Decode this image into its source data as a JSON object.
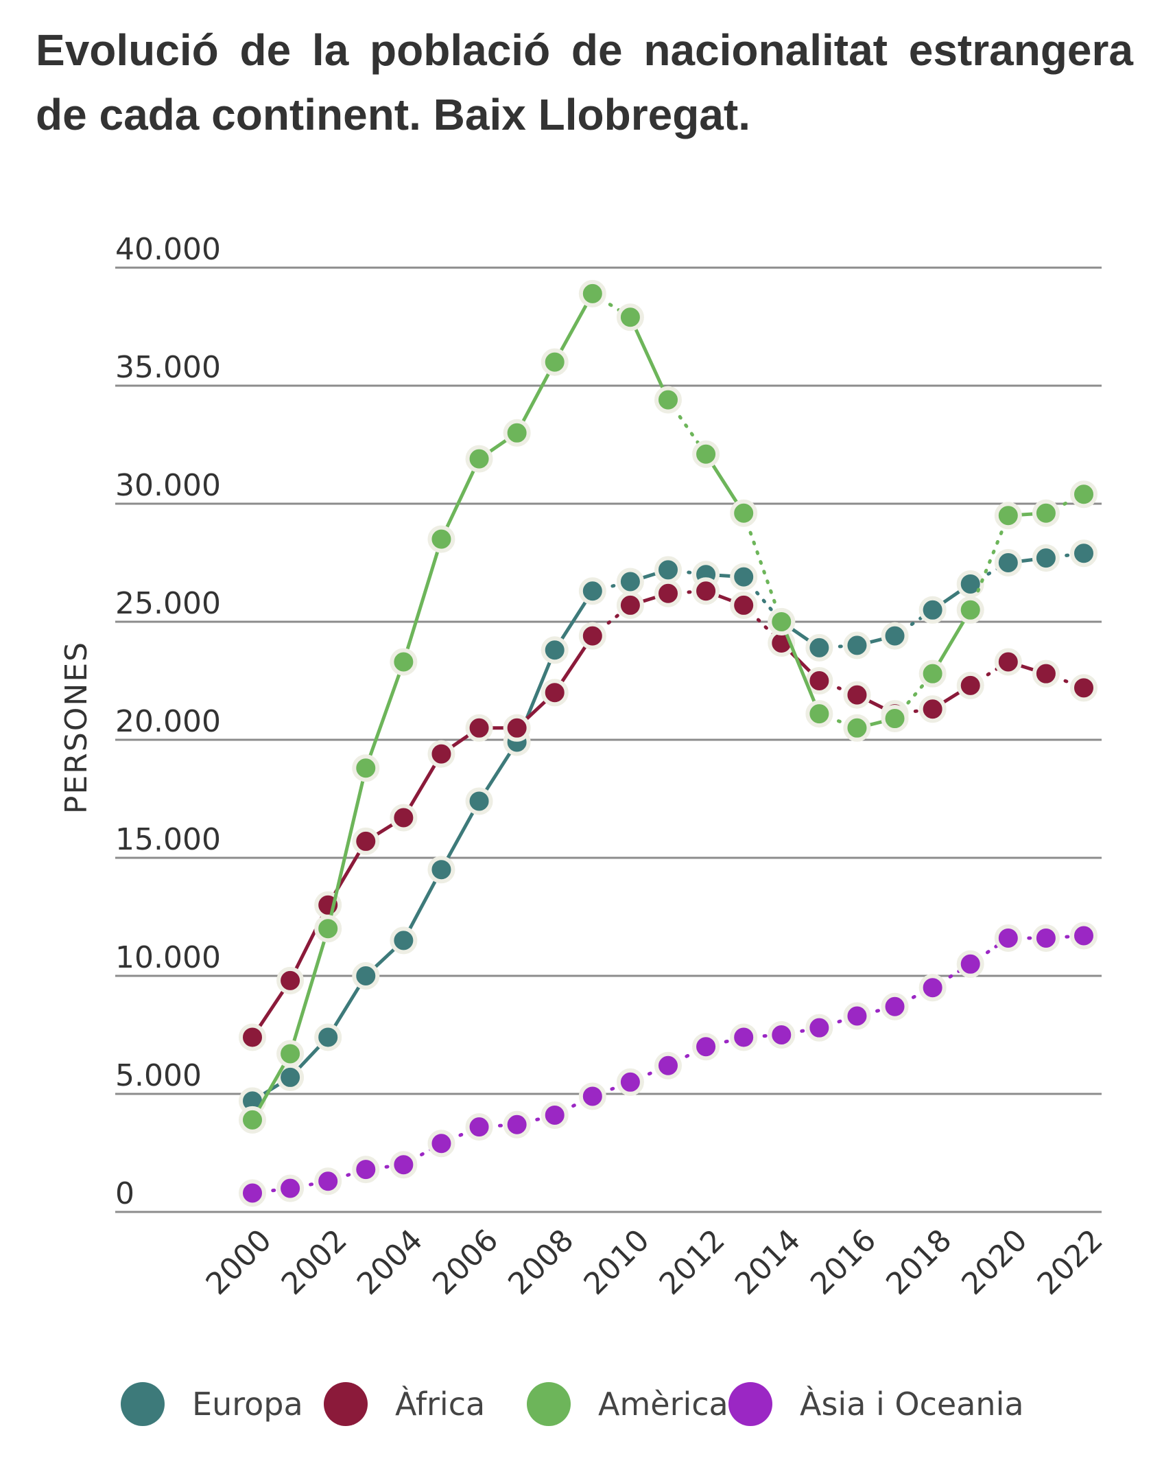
{
  "title": "Evolució de la població de nacionalitat estrangera de cada continent. Baix Llobregat.",
  "chart_data": {
    "type": "line",
    "title": "Evolució de la població de nacionalitat estrangera de cada continent. Baix Llobregat.",
    "ylabel": "PERSONES",
    "xlabel": "",
    "ylim": [
      0,
      40000
    ],
    "yticks": [
      "0",
      "5.000",
      "10.000",
      "15.000",
      "20.000",
      "25.000",
      "30.000",
      "35.000",
      "40.000"
    ],
    "ytick_values": [
      0,
      5000,
      10000,
      15000,
      20000,
      25000,
      30000,
      35000,
      40000
    ],
    "xticks": [
      "2000",
      "2002",
      "2004",
      "2006",
      "2008",
      "2010",
      "2012",
      "2014",
      "2016",
      "2018",
      "2020",
      "2022"
    ],
    "x": [
      2000,
      2001,
      2002,
      2003,
      2004,
      2005,
      2006,
      2007,
      2008,
      2009,
      2010,
      2011,
      2012,
      2013,
      2014,
      2015,
      2016,
      2017,
      2018,
      2019,
      2020,
      2021,
      2022
    ],
    "grid": "horizontal",
    "legend": "bottom",
    "series": [
      {
        "name": "Europa",
        "color": "#3d7a7a",
        "line_style": "mixed",
        "values": [
          4700,
          5700,
          7400,
          10000,
          11500,
          14500,
          17400,
          19900,
          23800,
          26300,
          26700,
          27200,
          27000,
          26900,
          25000,
          23900,
          24000,
          24400,
          25500,
          26600,
          27500,
          27700,
          27900
        ]
      },
      {
        "name": "Àfrica",
        "color": "#8b1a3a",
        "line_style": "mixed",
        "values": [
          7400,
          9800,
          13000,
          15700,
          16700,
          19400,
          20500,
          20500,
          22000,
          24400,
          25700,
          26200,
          26300,
          25700,
          24100,
          22500,
          21900,
          21100,
          21300,
          22300,
          23300,
          22800,
          22200
        ]
      },
      {
        "name": "Amèrica",
        "color": "#6db55a",
        "line_style": "mixed",
        "values": [
          3900,
          6700,
          12000,
          18800,
          23300,
          28500,
          31900,
          33000,
          36000,
          38900,
          37900,
          34400,
          32100,
          29600,
          25000,
          21100,
          20500,
          20900,
          22800,
          25500,
          29500,
          29600,
          30400
        ]
      },
      {
        "name": "Àsia i Oceania",
        "color": "#9b27c4",
        "line_style": "dotted",
        "values": [
          800,
          1000,
          1300,
          1800,
          2000,
          2900,
          3600,
          3700,
          4100,
          4900,
          5500,
          6200,
          7000,
          7400,
          7500,
          7800,
          8300,
          8700,
          9500,
          10500,
          11600,
          11600,
          11700
        ]
      }
    ]
  }
}
